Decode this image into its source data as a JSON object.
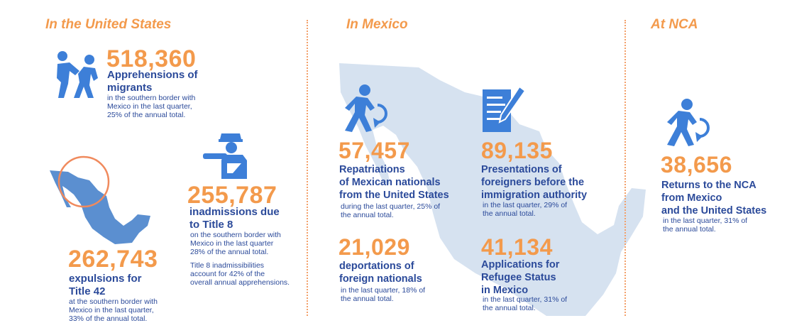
{
  "colors": {
    "accent": "#f39a4c",
    "text": "#2b4a9a",
    "icon": "#3d7fd8",
    "map": "#d6e2f0",
    "map_dark": "#5b8fd0"
  },
  "sections": {
    "us": {
      "title": "In the United States"
    },
    "mexico": {
      "title": "In Mexico"
    },
    "nca": {
      "title": "At NCA"
    }
  },
  "us": {
    "apprehensions": {
      "number": "518,360",
      "line1": "Apprehensions of",
      "line2": "migrants",
      "detail1": "in the southern border with",
      "detail2": "Mexico in the last quarter,",
      "detail3": "25% of the annual total."
    },
    "title8": {
      "number": "255,787",
      "line1": "inadmissions due",
      "line2": "to Title 8",
      "detail1": "on the southern border with",
      "detail2": "Mexico in the last quarter",
      "detail3": "28% of the annual total.",
      "note1": "Title 8 inadmissibilities",
      "note2": "account for 42% of the",
      "note3": "overall annual apprehensions."
    },
    "title42": {
      "number": "262,743",
      "line1": "expulsions for",
      "line2": "Title 42",
      "detail1": "at the southern border with",
      "detail2": "Mexico in the last quarter,",
      "detail3": "33% of the annual total."
    }
  },
  "mexico": {
    "repatriations": {
      "number": "57,457",
      "line1": "Repatriations",
      "line2": "of Mexican nationals",
      "line3": "from the United States",
      "detail1": "during the last quarter, 25% of",
      "detail2": "the annual total."
    },
    "presentations": {
      "number": "89,135",
      "line1": "Presentations of",
      "line2": "foreigners before the",
      "line3": "immigration authority",
      "detail1": "in the last quarter, 29% of",
      "detail2": "the annual total."
    },
    "deportations": {
      "number": "21,029",
      "line1": "deportations of",
      "line2": "foreign nationals",
      "detail1": "in the last quarter, 18% of",
      "detail2": "the annual total."
    },
    "refugee": {
      "number": "41,134",
      "line1": "Applications for",
      "line2": "Refugee Status",
      "line3": "in Mexico",
      "detail1": "in the last quarter, 31% of",
      "detail2": "the annual total."
    }
  },
  "nca": {
    "returns": {
      "number": "38,656",
      "line1": "Returns to the NCA",
      "line2": "from Mexico",
      "line3": "and the United States",
      "detail1": "in the last quarter, 31% of",
      "detail2": "the annual total."
    }
  },
  "icons": [
    "apprehension-figures-icon",
    "officer-icon",
    "mexico-map-icon",
    "return-person-icon",
    "document-pen-icon"
  ]
}
